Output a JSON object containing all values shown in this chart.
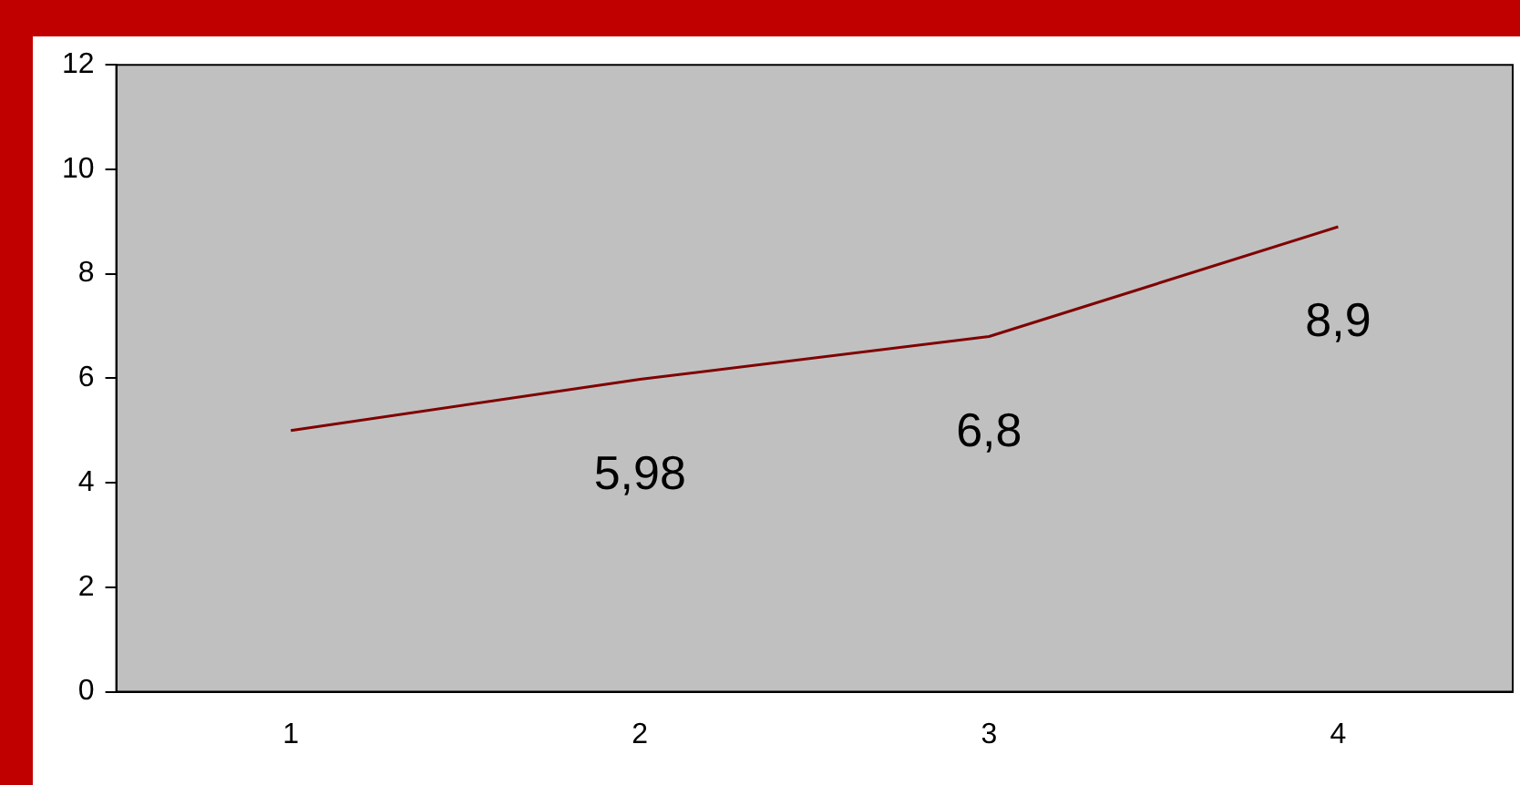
{
  "chart_data": {
    "type": "line",
    "categories": [
      "1",
      "2",
      "3",
      "4"
    ],
    "values": [
      5.0,
      5.98,
      6.8,
      8.9
    ],
    "value_labels": [
      null,
      "5,98",
      "6,8",
      "8,9"
    ],
    "color": "#800000",
    "marker": "none",
    "ylim": [
      0,
      12
    ],
    "yticks": [
      0,
      2,
      4,
      6,
      8,
      10,
      12
    ]
  }
}
